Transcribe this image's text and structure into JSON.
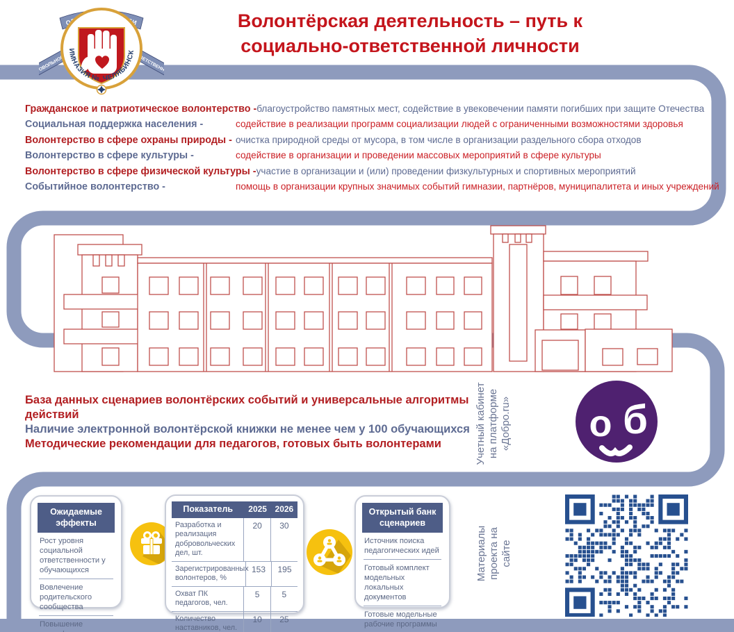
{
  "colors": {
    "ribbon_slate": "#8e9bbd",
    "title_red": "#c4151c",
    "label_red": "#b21f22",
    "desc_red": "#cb2026",
    "text_blue": "#5e6b92",
    "building_line": "#c0504d",
    "card_header_bg": "#4e5d87",
    "qr_blue": "#27508f",
    "dobro_purple": "#4f2170",
    "icon_yellow": "#f6c10f",
    "badge_gold": "#d8a13a",
    "badge_shield_red": "#c0181e"
  },
  "header": {
    "title_line1": "Волонтёрская деятельность – путь к",
    "title_line2": "социально-ответственной личности",
    "logo": {
      "ribbon_top": "ОБЩИЕ ЦЕННОСТИ",
      "ribbon_left": "ДОБРОВОЛЬНОСТЬ",
      "ribbon_right": "ОТВЕТСТВЕННОСТЬ",
      "arc_left": "ГИМНАЗИЯ № 1",
      "arc_right": "ЧЕЛЯБИНСК"
    }
  },
  "directions": {
    "rows": [
      {
        "label": "Гражданское и патриотическое волонтерство -",
        "desc": "благоустройство памятных мест, содействие в увековечении памяти погибших при защите Отечества"
      },
      {
        "label": "Социальная поддержка населения -",
        "desc": "содействие в реализации программ социализации людей с ограниченными возможностями здоровья"
      },
      {
        "label": "Волонтерство в сфере охраны природы -",
        "desc": "очистка природной среды от мусора, в том числе в организации раздельного сбора отходов"
      },
      {
        "label": "Волонтерство в сфере культуры -",
        "desc": "содействие в организации и проведении массовых мероприятий в сфере культуры"
      },
      {
        "label": "Волонтерство в сфере физической культуры -",
        "desc": "участие в организации и (или) проведении физкультурных и спортивных мероприятий"
      },
      {
        "label": "Событийное волонтерство -",
        "desc": "помощь в организации крупных значимых событий гимназии, партнёров, муниципалитета и иных учреждений"
      }
    ]
  },
  "middle": {
    "results": [
      "База данных сценариев волонтёрских событий и универсальные алгоритмы действий",
      "Наличие электронной волонтёрской книжки не менее чем у 100 обучающихся",
      "Методические рекомендации для педагогов, готовых быть волонтерами"
    ],
    "platform_note": {
      "lines": [
        "Учетный кабинет",
        "на платформе",
        "«Добро.ru»"
      ]
    },
    "dobro_logo_text": "об"
  },
  "bottom": {
    "effects": {
      "title": "Ожидаемые эффекты",
      "items": [
        "Рост уровня социальной ответственности у обучающихся",
        "Вовлечение родительского сообщества",
        "Повышение квалификации педагогов гимназии"
      ],
      "more": "....."
    },
    "table": {
      "headers": [
        "Показатель",
        "2025",
        "2026"
      ],
      "rows": [
        {
          "label": "Разработка и реализация добровольческих дел, шт.",
          "y2025": "20",
          "y2026": "30"
        },
        {
          "label": "Зарегистрированных волонтеров, %",
          "y2025": "153",
          "y2026": "195"
        },
        {
          "label": "Охват ПК педагогов, чел.",
          "y2025": "5",
          "y2026": "5"
        },
        {
          "label": "Количество наставников, чел.",
          "y2025": "10",
          "y2026": "25"
        }
      ]
    },
    "bank": {
      "title": "Открытый банк сценариев",
      "items": [
        "Источник поиска педагогических идей",
        "Готовый комплект модельных локальных документов",
        "Готовые модельные рабочие программы для реализации «точь-в-точь»"
      ]
    },
    "site_note": {
      "lines": [
        "Материалы",
        "проекта на",
        "сайте"
      ]
    }
  }
}
